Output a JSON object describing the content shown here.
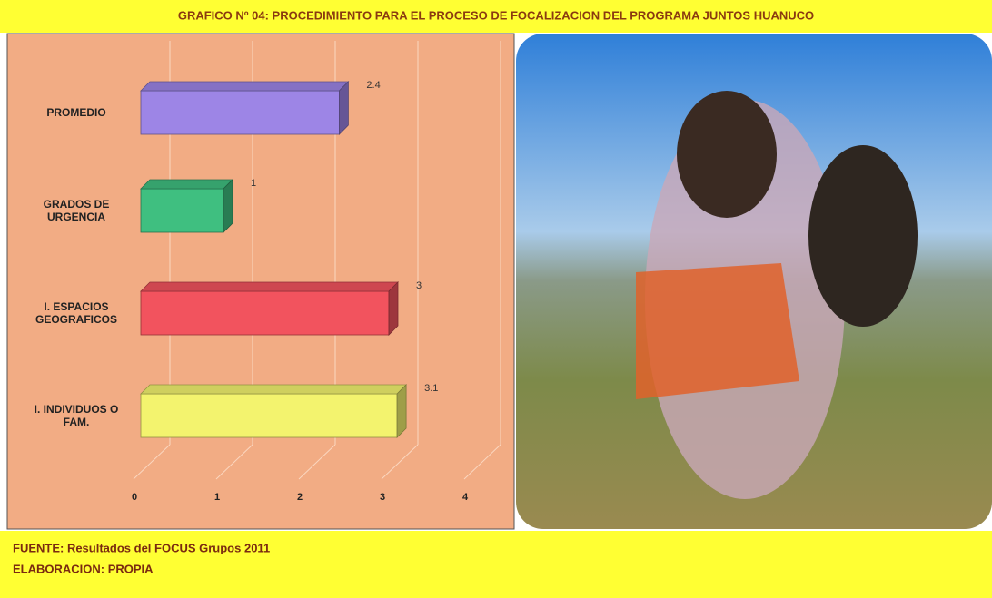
{
  "chart_data": {
    "type": "bar3d",
    "title": "GRAFICO Nº 04: PROCEDIMIENTO  PARA EL PROCESO DE FOCALIZACION DEL PROGRAMA JUNTOS HUANUCO",
    "categories": [
      "PROMEDIO",
      "GRADOS DE URGENCIA",
      "I. ESPACIOS GEOGRAFICOS",
      "I. INDIVIDUOS O FAM."
    ],
    "values": [
      2.4,
      1,
      3,
      3.1
    ],
    "colors": [
      "#9d85e6",
      "#3fbf80",
      "#f2535e",
      "#f3f36e"
    ],
    "xlim": [
      0,
      4
    ],
    "xticks": [
      0,
      1,
      2,
      3,
      4
    ],
    "grid": true
  },
  "footer": [
    "FUENTE: Resultados del FOCUS Grupos 2011",
    "ELABORACION: PROPIA"
  ]
}
